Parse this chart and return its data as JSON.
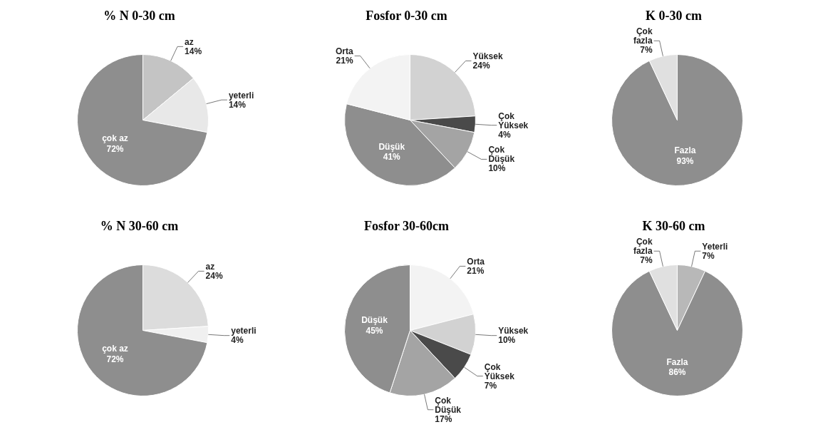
{
  "chart_data": [
    {
      "type": "pie",
      "title": "% N 0-30 cm",
      "categories": [
        "az",
        "yeterli",
        "çok az"
      ],
      "values": [
        14,
        14,
        72
      ],
      "value_labels": [
        "14%",
        "14%",
        "72%"
      ],
      "colors": [
        "#c4c4c4",
        "#e8e8e8",
        "#8e8e8e"
      ],
      "legend": false
    },
    {
      "type": "pie",
      "title": "Fosfor 0-30 cm",
      "categories": [
        "Yüksek",
        "Çok Yüksek",
        "Çok Düşük",
        "Düşük",
        "Orta"
      ],
      "values": [
        24,
        4,
        10,
        41,
        21
      ],
      "value_labels": [
        "24%",
        "4%",
        "10%",
        "41%",
        "21%"
      ],
      "colors": [
        "#d2d2d2",
        "#4a4a4a",
        "#a4a4a4",
        "#8e8e8e",
        "#f3f3f3"
      ],
      "legend": false
    },
    {
      "type": "pie",
      "title": "K 0-30 cm",
      "categories": [
        "Fazla",
        "Çok fazla"
      ],
      "values": [
        93,
        7
      ],
      "value_labels": [
        "93%",
        "7%"
      ],
      "colors": [
        "#8e8e8e",
        "#e0e0e0"
      ],
      "legend": false
    },
    {
      "type": "pie",
      "title": "% N 30-60 cm",
      "categories": [
        "az",
        "yeterli",
        "çok az"
      ],
      "values": [
        24,
        4,
        72
      ],
      "value_labels": [
        "24%",
        "4%",
        "72%"
      ],
      "colors": [
        "#dcdcdc",
        "#f0f0f0",
        "#8e8e8e"
      ],
      "legend": false
    },
    {
      "type": "pie",
      "title": "Fosfor 30-60cm",
      "categories": [
        "Orta",
        "Yüksek",
        "Çok Yüksek",
        "Çok Düşük",
        "Düşük"
      ],
      "values": [
        21,
        10,
        7,
        17,
        45
      ],
      "value_labels": [
        "21%",
        "10%",
        "7%",
        "17%",
        "45%"
      ],
      "colors": [
        "#f3f3f3",
        "#d2d2d2",
        "#4a4a4a",
        "#a4a4a4",
        "#8e8e8e"
      ],
      "legend": false
    },
    {
      "type": "pie",
      "title": "K 30-60 cm",
      "categories": [
        "Yeterli",
        "Fazla",
        "Çok fazla"
      ],
      "values": [
        7,
        86,
        7
      ],
      "value_labels": [
        "7%",
        "86%",
        "7%"
      ],
      "colors": [
        "#b8b8b8",
        "#8e8e8e",
        "#e0e0e0"
      ],
      "legend": false
    }
  ]
}
